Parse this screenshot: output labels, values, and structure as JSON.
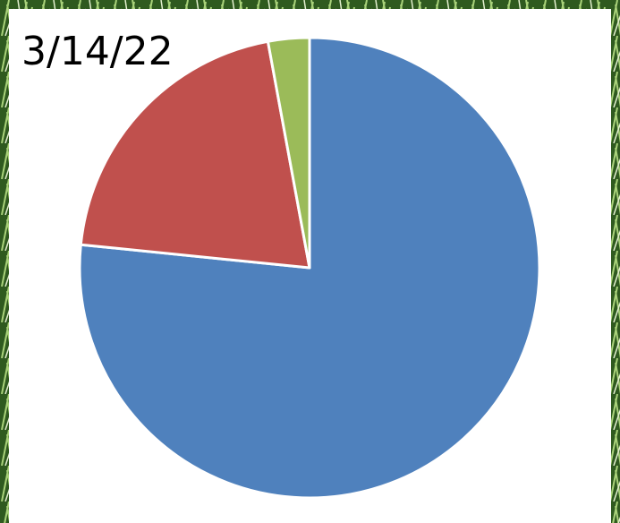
{
  "chart_data": {
    "type": "pie",
    "title": "3/14/22",
    "values": [
      76.6,
      20.5,
      2.9
    ],
    "colors": [
      "#4f81bd",
      "#c0504d",
      "#9bbb59"
    ]
  }
}
